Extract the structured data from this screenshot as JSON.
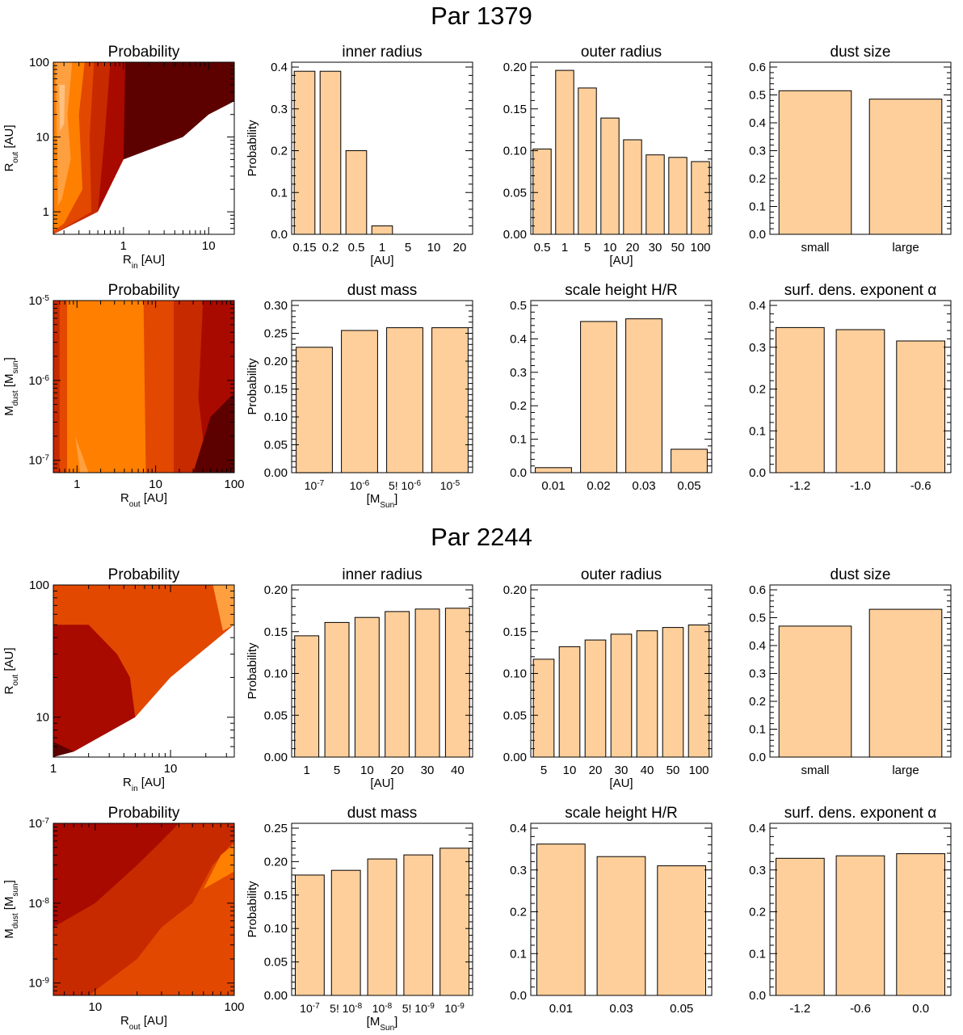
{
  "figure": {
    "sections": [
      {
        "title": "Par 1379"
      },
      {
        "title": "Par 2244"
      }
    ],
    "colors": {
      "bar_fill": "#ffcf9b",
      "bar_stroke": "#000000",
      "contour_levels": [
        "#5c0000",
        "#a80a00",
        "#c82a00",
        "#e24800",
        "#ff7f00",
        "#ffa040",
        "#ffc080"
      ]
    }
  },
  "chart_data": [
    {
      "id": "p1379-prob-rin-rout",
      "type": "heatmap",
      "title": "Probability",
      "xlabel": "R",
      "xlabel_sub": "in",
      "xlabel_tail": " [AU]",
      "ylabel": "R",
      "ylabel_sub": "out",
      "ylabel_tail": " [AU]",
      "xscale": "log",
      "yscale": "log",
      "xlim": [
        0.15,
        20
      ],
      "ylim": [
        0.5,
        100
      ],
      "xticks": [
        {
          "v": 1,
          "label": "1"
        },
        {
          "v": 10,
          "label": "10"
        }
      ],
      "yticks": [
        {
          "v": 1,
          "label": "1"
        },
        {
          "v": 10,
          "label": "10"
        },
        {
          "v": 100,
          "label": "100"
        }
      ],
      "regions": [
        {
          "level": 0,
          "poly": [
            [
              0.15,
              100
            ],
            [
              20,
              100
            ],
            [
              20,
              30
            ],
            [
              10,
              20
            ],
            [
              5,
              10
            ],
            [
              1,
              5
            ],
            [
              0.5,
              1
            ],
            [
              0.15,
              0.5
            ]
          ]
        },
        {
          "level": 1,
          "poly": [
            [
              0.15,
              100
            ],
            [
              1.05,
              100
            ],
            [
              1.0,
              5
            ],
            [
              0.5,
              1
            ],
            [
              0.15,
              0.5
            ]
          ]
        },
        {
          "level": 2,
          "poly": [
            [
              0.15,
              100
            ],
            [
              0.7,
              100
            ],
            [
              0.6,
              10
            ],
            [
              0.5,
              1
            ],
            [
              0.15,
              0.5
            ]
          ]
        },
        {
          "level": 3,
          "poly": [
            [
              0.15,
              100
            ],
            [
              0.45,
              100
            ],
            [
              0.4,
              10
            ],
            [
              0.42,
              1
            ],
            [
              0.15,
              0.5
            ]
          ]
        },
        {
          "level": 4,
          "poly": [
            [
              0.15,
              100
            ],
            [
              0.35,
              100
            ],
            [
              0.3,
              20
            ],
            [
              0.33,
              2
            ],
            [
              0.2,
              0.7
            ],
            [
              0.15,
              0.55
            ]
          ]
        },
        {
          "level": 5,
          "poly": [
            [
              0.16,
              100
            ],
            [
              0.25,
              100
            ],
            [
              0.22,
              20
            ],
            [
              0.24,
              5
            ],
            [
              0.19,
              1.5
            ],
            [
              0.17,
              1.2
            ]
          ]
        },
        {
          "level": 6,
          "poly": [
            [
              0.175,
              50
            ],
            [
              0.205,
              50
            ],
            [
              0.2,
              15
            ],
            [
              0.18,
              12
            ]
          ]
        }
      ],
      "excluded": [
        [
          20,
          0.5
        ],
        [
          20,
          30
        ],
        [
          10,
          20
        ],
        [
          5,
          10
        ],
        [
          1,
          5
        ],
        [
          0.5,
          1
        ],
        [
          0.15,
          0.5
        ]
      ]
    },
    {
      "id": "p1379-inner-radius",
      "type": "bar",
      "title": "inner radius",
      "ylabel": "Probability",
      "xlabel": "[AU]",
      "categories": [
        "0.15",
        "0.2",
        "0.5",
        "1",
        "5",
        "10",
        "20"
      ],
      "values": [
        0.39,
        0.39,
        0.2,
        0.02,
        0,
        0,
        0
      ],
      "ylim": [
        0,
        0.4
      ],
      "yticks": [
        "0.0",
        "0.1",
        "0.2",
        "0.3",
        "0.4"
      ]
    },
    {
      "id": "p1379-outer-radius",
      "type": "bar",
      "title": "outer radius",
      "ylabel": "",
      "xlabel": "[AU]",
      "categories": [
        "0.5",
        "1",
        "5",
        "10",
        "20",
        "30",
        "50",
        "100"
      ],
      "values": [
        0.102,
        0.196,
        0.175,
        0.139,
        0.113,
        0.095,
        0.092,
        0.087
      ],
      "ylim": [
        0,
        0.2
      ],
      "yticks": [
        "0.00",
        "0.05",
        "0.10",
        "0.15",
        "0.20"
      ]
    },
    {
      "id": "p1379-dust-size",
      "type": "bar",
      "title": "dust size",
      "ylabel": "",
      "xlabel": "",
      "categories": [
        "small",
        "large"
      ],
      "values": [
        0.515,
        0.485
      ],
      "ylim": [
        0,
        0.6
      ],
      "yticks": [
        "0.0",
        "0.1",
        "0.2",
        "0.3",
        "0.4",
        "0.5",
        "0.6"
      ]
    },
    {
      "id": "p1379-prob-rout-mdust",
      "type": "heatmap",
      "title": "Probability",
      "xlabel": "R",
      "xlabel_sub": "out",
      "xlabel_tail": " [AU]",
      "ylabel": "M",
      "ylabel_sub": "dust",
      "ylabel_tail": " [M",
      "ylabel_sub2": "sun",
      "ylabel_tail2": "]",
      "xscale": "log",
      "yscale": "log",
      "xlim": [
        0.5,
        100
      ],
      "ylim": [
        7e-08,
        1e-05
      ],
      "xticks": [
        {
          "v": 1,
          "label": "1"
        },
        {
          "v": 10,
          "label": "10"
        },
        {
          "v": 100,
          "label": "100"
        }
      ],
      "yticks": [
        {
          "v": 1e-07,
          "label": "10",
          "sup": "-7"
        },
        {
          "v": 1e-06,
          "label": "10",
          "sup": "-6"
        },
        {
          "v": 1e-05,
          "label": "10",
          "sup": "-5"
        }
      ],
      "regions": [
        {
          "level": 1,
          "poly": [
            [
              0.5,
              1e-05
            ],
            [
              100,
              1e-05
            ],
            [
              100,
              7e-08
            ],
            [
              0.5,
              7e-08
            ]
          ]
        },
        {
          "level": 2,
          "poly": [
            [
              0.5,
              1e-05
            ],
            [
              40,
              1e-05
            ],
            [
              35,
              6e-07
            ],
            [
              45,
              7e-08
            ],
            [
              0.5,
              7e-08
            ]
          ]
        },
        {
          "level": 3,
          "poly": [
            [
              0.6,
              1e-05
            ],
            [
              17,
              1e-05
            ],
            [
              17,
              7e-08
            ],
            [
              0.6,
              7e-08
            ]
          ]
        },
        {
          "level": 4,
          "poly": [
            [
              0.75,
              1e-05
            ],
            [
              7,
              1e-05
            ],
            [
              7.5,
              7e-08
            ],
            [
              0.75,
              7e-08
            ]
          ]
        },
        {
          "level": 5,
          "poly": [
            [
              0.95,
              2e-07
            ],
            [
              1.1,
              7e-08
            ],
            [
              1.4,
              7e-08
            ]
          ]
        },
        {
          "level": 0,
          "poly": [
            [
              50,
              3.5e-07
            ],
            [
              100,
              7e-07
            ],
            [
              100,
              7e-08
            ],
            [
              30,
              7e-08
            ]
          ]
        }
      ],
      "excluded": []
    },
    {
      "id": "p1379-dust-mass",
      "type": "bar",
      "title": "dust mass",
      "ylabel": "Probability",
      "xlabel": "[M",
      "xlabel_sub": "Sun",
      "xlabel_tail": "]",
      "categories": [
        {
          "t": "10",
          "sup": "-7"
        },
        {
          "t": "10",
          "sup": "-6"
        },
        {
          "t": "5! 10",
          "sup": "-6"
        },
        {
          "t": "10",
          "sup": "-5"
        }
      ],
      "values": [
        0.225,
        0.255,
        0.26,
        0.26
      ],
      "ylim": [
        0,
        0.3
      ],
      "yticks": [
        "0.00",
        "0.05",
        "0.10",
        "0.15",
        "0.20",
        "0.25",
        "0.30"
      ]
    },
    {
      "id": "p1379-scale-height",
      "type": "bar",
      "title": "scale height  H/R",
      "ylabel": "",
      "xlabel": "",
      "categories": [
        "0.01",
        "0.02",
        "0.03",
        "0.05"
      ],
      "values": [
        0.015,
        0.452,
        0.46,
        0.07
      ],
      "ylim": [
        0,
        0.5
      ],
      "yticks": [
        "0.0",
        "0.1",
        "0.2",
        "0.3",
        "0.4",
        "0.5"
      ]
    },
    {
      "id": "p1379-surf-dens",
      "type": "bar",
      "title": "surf. dens. exponent α",
      "ylabel": "",
      "xlabel": "",
      "categories": [
        "-1.2",
        "-1.0",
        "-0.6"
      ],
      "values": [
        0.347,
        0.342,
        0.315
      ],
      "ylim": [
        0,
        0.4
      ],
      "yticks": [
        "0.0",
        "0.1",
        "0.2",
        "0.3",
        "0.4"
      ]
    },
    {
      "id": "p2244-prob-rin-rout",
      "type": "heatmap",
      "title": "Probability",
      "xlabel": "R",
      "xlabel_sub": "in",
      "xlabel_tail": " [AU]",
      "ylabel": "R",
      "ylabel_sub": "out",
      "ylabel_tail": " [AU]",
      "xscale": "log",
      "yscale": "log",
      "xlim": [
        1,
        35
      ],
      "ylim": [
        5,
        100
      ],
      "xticks": [
        {
          "v": 1,
          "label": "1"
        },
        {
          "v": 10,
          "label": "10"
        }
      ],
      "yticks": [
        {
          "v": 10,
          "label": "10"
        },
        {
          "v": 100,
          "label": "100"
        }
      ],
      "regions": [
        {
          "level": 3,
          "poly": [
            [
              1,
              100
            ],
            [
              35,
              100
            ],
            [
              35,
              50
            ],
            [
              10,
              20
            ],
            [
              5,
              10
            ],
            [
              1.5,
              5.5
            ],
            [
              1,
              5
            ]
          ]
        },
        {
          "level": 1,
          "poly": [
            [
              1,
              50
            ],
            [
              2,
              50
            ],
            [
              3.5,
              30
            ],
            [
              4.5,
              20
            ],
            [
              5,
              10
            ],
            [
              1.5,
              5.5
            ],
            [
              1,
              5
            ]
          ]
        },
        {
          "level": 0,
          "poly": [
            [
              1,
              6.5
            ],
            [
              1.5,
              5.5
            ],
            [
              1,
              5
            ]
          ]
        },
        {
          "level": 5,
          "poly": [
            [
              23,
              100
            ],
            [
              35,
              100
            ],
            [
              35,
              50
            ],
            [
              28,
              45
            ]
          ]
        }
      ],
      "excluded": [
        [
          35,
          5
        ],
        [
          35,
          50
        ],
        [
          10,
          20
        ],
        [
          5,
          10
        ],
        [
          1.5,
          5.5
        ],
        [
          1,
          5
        ]
      ]
    },
    {
      "id": "p2244-inner-radius",
      "type": "bar",
      "title": "inner radius",
      "ylabel": "Probability",
      "xlabel": "[AU]",
      "categories": [
        "1",
        "5",
        "10",
        "20",
        "30",
        "40"
      ],
      "values": [
        0.145,
        0.161,
        0.167,
        0.174,
        0.177,
        0.178
      ],
      "ylim": [
        0,
        0.2
      ],
      "yticks": [
        "0.00",
        "0.05",
        "0.10",
        "0.15",
        "0.20"
      ]
    },
    {
      "id": "p2244-outer-radius",
      "type": "bar",
      "title": "outer radius",
      "ylabel": "",
      "xlabel": "[AU]",
      "categories": [
        "5",
        "10",
        "20",
        "30",
        "40",
        "50",
        "100"
      ],
      "values": [
        0.117,
        0.132,
        0.14,
        0.147,
        0.151,
        0.155,
        0.158
      ],
      "ylim": [
        0,
        0.2
      ],
      "yticks": [
        "0.00",
        "0.05",
        "0.10",
        "0.15",
        "0.20"
      ]
    },
    {
      "id": "p2244-dust-size",
      "type": "bar",
      "title": "dust size",
      "ylabel": "",
      "xlabel": "",
      "categories": [
        "small",
        "large"
      ],
      "values": [
        0.47,
        0.53
      ],
      "ylim": [
        0,
        0.6
      ],
      "yticks": [
        "0.0",
        "0.1",
        "0.2",
        "0.3",
        "0.4",
        "0.5",
        "0.6"
      ]
    },
    {
      "id": "p2244-prob-rout-mdust",
      "type": "heatmap",
      "title": "Probability",
      "xlabel": "R",
      "xlabel_sub": "out",
      "xlabel_tail": " [AU]",
      "ylabel": "M",
      "ylabel_sub": "dust",
      "ylabel_tail": " [M",
      "ylabel_sub2": "sun",
      "ylabel_tail2": "]",
      "xscale": "log",
      "yscale": "log",
      "xlim": [
        5,
        100
      ],
      "ylim": [
        7e-10,
        1e-07
      ],
      "xticks": [
        {
          "v": 10,
          "label": "10"
        },
        {
          "v": 100,
          "label": "100"
        }
      ],
      "yticks": [
        {
          "v": 1e-09,
          "label": "10",
          "sup": "-9"
        },
        {
          "v": 1e-08,
          "label": "10",
          "sup": "-8"
        },
        {
          "v": 1e-07,
          "label": "10",
          "sup": "-7"
        }
      ],
      "regions": [
        {
          "level": 1,
          "poly": [
            [
              5,
              1e-07
            ],
            [
              100,
              1e-07
            ],
            [
              100,
              7e-10
            ],
            [
              5,
              7e-10
            ]
          ]
        },
        {
          "level": 2,
          "poly": [
            [
              5,
              5e-09
            ],
            [
              10,
              1e-08
            ],
            [
              20,
              3e-08
            ],
            [
              30,
              6e-08
            ],
            [
              40,
              1e-07
            ],
            [
              100,
              1e-07
            ],
            [
              100,
              7e-10
            ],
            [
              5,
              7e-10
            ]
          ]
        },
        {
          "level": 3,
          "poly": [
            [
              9,
              7e-10
            ],
            [
              20,
              2e-09
            ],
            [
              30,
              5e-09
            ],
            [
              50,
              1e-08
            ],
            [
              70,
              3e-08
            ],
            [
              100,
              6e-08
            ],
            [
              100,
              7e-10
            ]
          ]
        },
        {
          "level": 4,
          "poly": [
            [
              60,
              1.5e-08
            ],
            [
              80,
              4e-08
            ],
            [
              100,
              5.5e-08
            ],
            [
              100,
              2.5e-08
            ]
          ]
        }
      ],
      "excluded": []
    },
    {
      "id": "p2244-dust-mass",
      "type": "bar",
      "title": "dust mass",
      "ylabel": "Probability",
      "xlabel": "[M",
      "xlabel_sub": "Sun",
      "xlabel_tail": "]",
      "categories": [
        {
          "t": "10",
          "sup": "-7"
        },
        {
          "t": "5! 10",
          "sup": "-8"
        },
        {
          "t": "10",
          "sup": "-8"
        },
        {
          "t": "5! 10",
          "sup": "-9"
        },
        {
          "t": "10",
          "sup": "-9"
        }
      ],
      "values": [
        0.18,
        0.187,
        0.204,
        0.21,
        0.22
      ],
      "ylim": [
        0,
        0.25
      ],
      "yticks": [
        "0.00",
        "0.05",
        "0.10",
        "0.15",
        "0.20",
        "0.25"
      ]
    },
    {
      "id": "p2244-scale-height",
      "type": "bar",
      "title": "scale height  H/R",
      "ylabel": "",
      "xlabel": "",
      "categories": [
        "0.01",
        "0.03",
        "0.05"
      ],
      "values": [
        0.362,
        0.332,
        0.31
      ],
      "ylim": [
        0,
        0.4
      ],
      "yticks": [
        "0.0",
        "0.1",
        "0.2",
        "0.3",
        "0.4"
      ]
    },
    {
      "id": "p2244-surf-dens",
      "type": "bar",
      "title": "surf. dens. exponent α",
      "ylabel": "",
      "xlabel": "",
      "categories": [
        "-1.2",
        "-0.6",
        "0.0"
      ],
      "values": [
        0.328,
        0.334,
        0.339
      ],
      "ylim": [
        0,
        0.4
      ],
      "yticks": [
        "0.0",
        "0.1",
        "0.2",
        "0.3",
        "0.4"
      ]
    }
  ]
}
